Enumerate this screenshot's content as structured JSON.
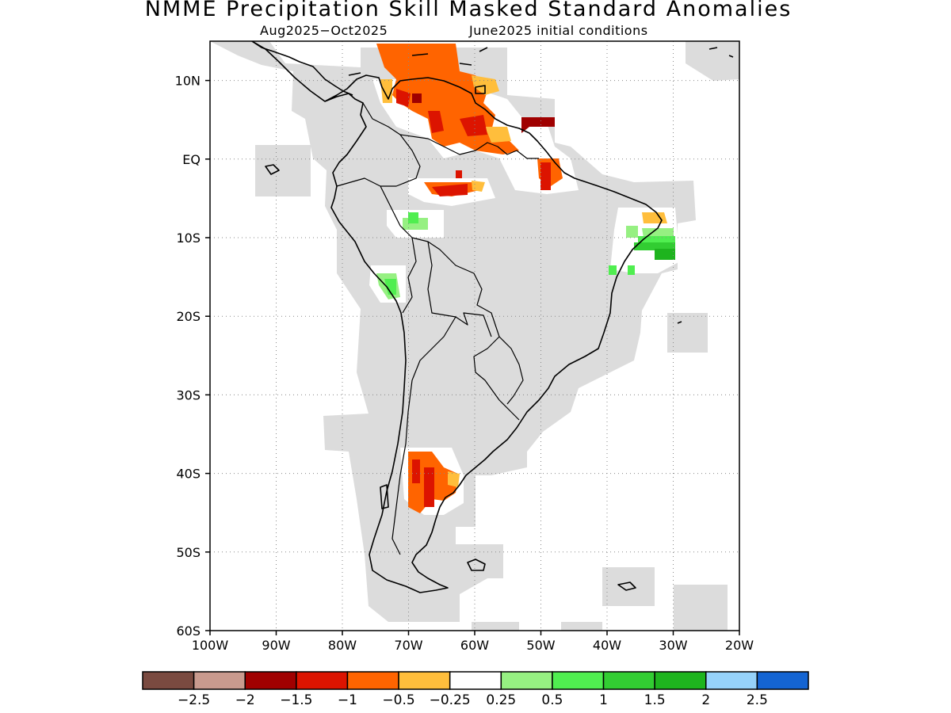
{
  "title": "NMME Precipitation Skill Masked Standard Anomalies",
  "subtitle": {
    "period": "Aug2025−Oct2025",
    "init": "June2025 initial conditions"
  },
  "map": {
    "region": "South America",
    "lat_range": [
      -60,
      15
    ],
    "lon_range": [
      -100,
      -20
    ],
    "lat_labels": [
      {
        "lat": 10,
        "text": "10N"
      },
      {
        "lat": 0,
        "text": "EQ"
      },
      {
        "lat": -10,
        "text": "10S"
      },
      {
        "lat": -20,
        "text": "20S"
      },
      {
        "lat": -30,
        "text": "30S"
      },
      {
        "lat": -40,
        "text": "40S"
      },
      {
        "lat": -50,
        "text": "50S"
      },
      {
        "lat": -60,
        "text": "60S"
      }
    ],
    "lon_labels": [
      {
        "lon": -100,
        "text": "100W"
      },
      {
        "lon": -90,
        "text": "90W"
      },
      {
        "lon": -80,
        "text": "80W"
      },
      {
        "lon": -70,
        "text": "70W"
      },
      {
        "lon": -60,
        "text": "60W"
      },
      {
        "lon": -50,
        "text": "50W"
      },
      {
        "lon": -40,
        "text": "40W"
      },
      {
        "lon": -30,
        "text": "30W"
      },
      {
        "lon": -20,
        "text": "20W"
      }
    ],
    "grid": "dotted",
    "colors": {
      "skill_mask": "#dcdcdc",
      "coastline": "#000000"
    }
  },
  "colorbar": {
    "colors": [
      "#7a4a40",
      "#c99a8e",
      "#a00000",
      "#dc1400",
      "#ff6400",
      "#ffbe3c",
      "#ffffff",
      "#96f082",
      "#50ee50",
      "#32cd32",
      "#1eb41e",
      "#96d2fa",
      "#1464d2"
    ],
    "labels": [
      "−2.5",
      "−2",
      "−1.5",
      "−1",
      "−0.5",
      "−0.25",
      "0.25",
      "0.5",
      "1",
      "1.5",
      "2",
      "2.5"
    ]
  }
}
